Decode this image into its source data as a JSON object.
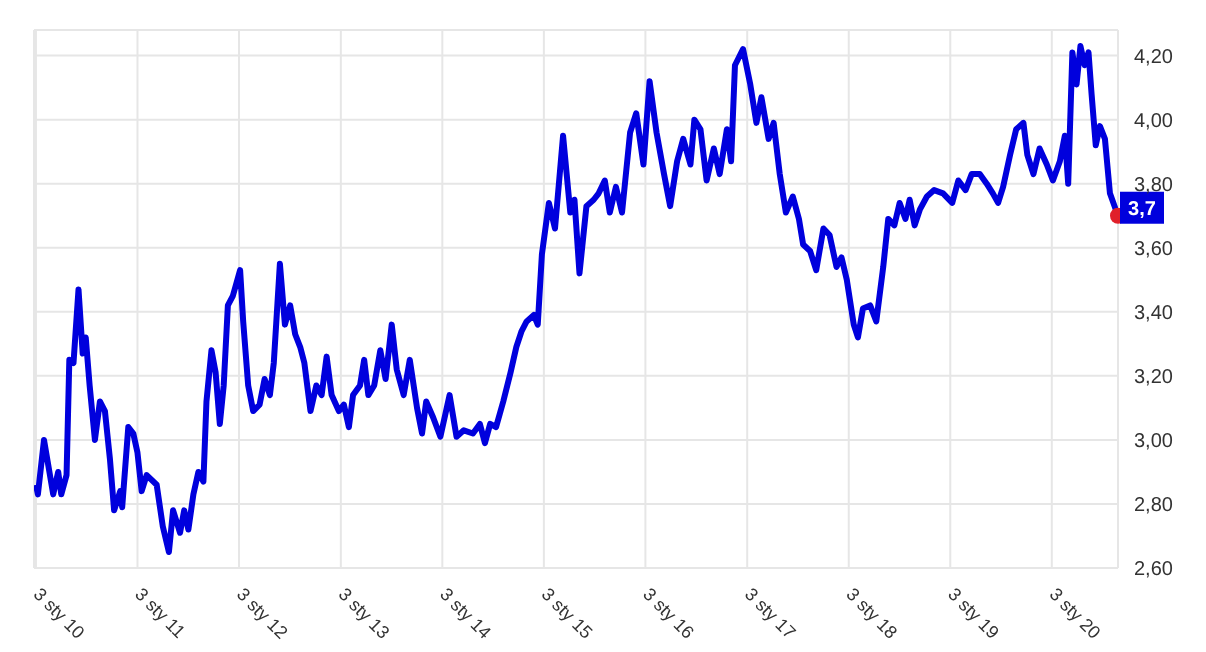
{
  "chart_data": {
    "type": "line",
    "x": [
      "2010-01-03",
      "2010-01-10",
      "2010-02-01",
      "2010-03-06",
      "2010-03-24",
      "2010-04-04",
      "2010-04-23",
      "2010-05-03",
      "2010-05-18",
      "2010-06-05",
      "2010-06-20",
      "2010-07-01",
      "2010-07-15",
      "2010-08-03",
      "2010-08-21",
      "2010-09-08",
      "2010-09-26",
      "2010-10-11",
      "2010-11-02",
      "2010-11-09",
      "2010-12-01",
      "2010-12-19",
      "2011-01-03",
      "2011-01-18",
      "2011-02-05",
      "2011-03-13",
      "2011-04-04",
      "2011-04-26",
      "2011-05-11",
      "2011-06-05",
      "2011-06-20",
      "2011-07-05",
      "2011-07-23",
      "2011-08-10",
      "2011-08-28",
      "2011-09-08",
      "2011-09-26",
      "2011-10-11",
      "2011-10-26",
      "2011-11-09",
      "2011-11-24",
      "2011-12-12",
      "2012-01-07",
      "2012-01-18",
      "2012-02-05",
      "2012-02-23",
      "2012-03-17",
      "2012-04-04",
      "2012-04-23",
      "2012-05-07",
      "2012-05-29",
      "2012-06-16",
      "2012-07-05",
      "2012-07-23",
      "2012-08-10",
      "2012-08-25",
      "2012-09-16",
      "2012-10-07",
      "2012-10-26",
      "2012-11-13",
      "2012-12-01",
      "2012-12-27",
      "2013-01-14",
      "2013-02-01",
      "2013-02-16",
      "2013-03-13",
      "2013-03-28",
      "2013-04-12",
      "2013-05-03",
      "2013-05-25",
      "2013-06-13",
      "2013-07-05",
      "2013-07-23",
      "2013-08-17",
      "2013-09-08",
      "2013-10-04",
      "2013-10-22",
      "2013-11-06",
      "2013-12-01",
      "2013-12-27",
      "2014-01-29",
      "2014-02-23",
      "2014-03-21",
      "2014-04-23",
      "2014-05-18",
      "2014-06-05",
      "2014-06-24",
      "2014-07-15",
      "2014-08-10",
      "2014-09-05",
      "2014-09-26",
      "2014-10-15",
      "2014-11-02",
      "2014-11-28",
      "2014-12-12",
      "2014-12-27",
      "2015-01-21",
      "2015-02-12",
      "2015-03-13",
      "2015-04-08",
      "2015-04-23",
      "2015-05-11",
      "2015-06-05",
      "2015-07-01",
      "2015-07-19",
      "2015-08-10",
      "2015-08-28",
      "2015-09-19",
      "2015-10-11",
      "2015-11-09",
      "2015-12-01",
      "2015-12-27",
      "2016-01-18",
      "2016-02-12",
      "2016-03-10",
      "2016-04-01",
      "2016-04-26",
      "2016-05-18",
      "2016-06-13",
      "2016-06-27",
      "2016-07-19",
      "2016-08-10",
      "2016-09-05",
      "2016-09-26",
      "2016-10-22",
      "2016-11-06",
      "2016-11-20",
      "2016-12-19",
      "2017-01-14",
      "2017-02-05",
      "2017-02-23",
      "2017-03-21",
      "2017-04-08",
      "2017-04-30",
      "2017-05-22",
      "2017-06-16",
      "2017-07-08",
      "2017-07-23",
      "2017-08-17",
      "2017-09-08",
      "2017-10-04",
      "2017-10-26",
      "2017-11-20",
      "2017-12-08",
      "2017-12-27",
      "2018-01-21",
      "2018-02-05",
      "2018-02-23",
      "2018-03-21",
      "2018-04-12",
      "2018-05-07",
      "2018-05-25",
      "2018-06-16",
      "2018-07-05",
      "2018-07-26",
      "2018-08-10",
      "2018-08-28",
      "2018-09-16",
      "2018-10-11",
      "2018-11-06",
      "2018-12-08",
      "2019-01-10",
      "2019-02-01",
      "2019-02-27",
      "2019-03-21",
      "2019-04-19",
      "2019-05-14",
      "2019-06-05",
      "2019-06-24",
      "2019-07-12",
      "2019-08-06",
      "2019-08-28",
      "2019-09-23",
      "2019-10-07",
      "2019-10-29",
      "2019-11-20",
      "2019-12-16",
      "2020-01-07",
      "2020-02-01",
      "2020-02-19",
      "2020-03-02",
      "2020-03-17",
      "2020-04-01",
      "2020-04-15",
      "2020-04-30",
      "2020-05-14",
      "2020-05-25",
      "2020-06-09",
      "2020-06-24",
      "2020-07-12",
      "2020-07-30",
      "2020-08-28"
    ],
    "series": [
      {
        "color": "#0000dd",
        "values": [
          2.86,
          2.83,
          3.0,
          2.83,
          2.9,
          2.83,
          2.89,
          3.25,
          3.24,
          3.47,
          3.27,
          3.32,
          3.17,
          3.0,
          3.12,
          3.09,
          2.94,
          2.78,
          2.84,
          2.79,
          3.04,
          3.02,
          2.96,
          2.84,
          2.89,
          2.86,
          2.73,
          2.65,
          2.78,
          2.71,
          2.78,
          2.72,
          2.83,
          2.9,
          2.87,
          3.12,
          3.28,
          3.21,
          3.05,
          3.17,
          3.42,
          3.45,
          3.53,
          3.37,
          3.17,
          3.09,
          3.11,
          3.19,
          3.14,
          3.24,
          3.55,
          3.36,
          3.42,
          3.33,
          3.29,
          3.24,
          3.09,
          3.17,
          3.14,
          3.26,
          3.14,
          3.09,
          3.11,
          3.04,
          3.14,
          3.17,
          3.25,
          3.14,
          3.17,
          3.28,
          3.19,
          3.36,
          3.22,
          3.14,
          3.25,
          3.1,
          3.02,
          3.12,
          3.07,
          3.01,
          3.14,
          3.01,
          3.03,
          3.02,
          3.05,
          2.99,
          3.05,
          3.04,
          3.12,
          3.21,
          3.29,
          3.34,
          3.37,
          3.39,
          3.36,
          3.58,
          3.74,
          3.66,
          3.95,
          3.71,
          3.75,
          3.52,
          3.73,
          3.75,
          3.77,
          3.81,
          3.71,
          3.79,
          3.71,
          3.96,
          4.02,
          3.86,
          4.12,
          3.96,
          3.83,
          3.73,
          3.87,
          3.94,
          3.86,
          4.0,
          3.97,
          3.81,
          3.91,
          3.83,
          3.97,
          3.87,
          4.17,
          4.22,
          4.11,
          3.99,
          4.07,
          3.94,
          3.99,
          3.83,
          3.71,
          3.76,
          3.69,
          3.61,
          3.59,
          3.53,
          3.66,
          3.64,
          3.54,
          3.57,
          3.5,
          3.36,
          3.32,
          3.41,
          3.42,
          3.37,
          3.54,
          3.69,
          3.67,
          3.74,
          3.69,
          3.75,
          3.67,
          3.72,
          3.76,
          3.78,
          3.77,
          3.74,
          3.81,
          3.78,
          3.83,
          3.83,
          3.8,
          3.77,
          3.74,
          3.79,
          3.89,
          3.97,
          3.99,
          3.89,
          3.83,
          3.91,
          3.86,
          3.81,
          3.87,
          3.95,
          3.8,
          4.21,
          4.11,
          4.23,
          4.17,
          4.21,
          4.08,
          3.92,
          3.98,
          3.94,
          3.77,
          3.7
        ]
      }
    ],
    "xlim": [
      "2009-12-27",
      "2020-08-28"
    ],
    "xticks": [
      {
        "value": "2010-01-03",
        "label": "3 sty 10"
      },
      {
        "value": "2011-01-03",
        "label": "3 sty 11"
      },
      {
        "value": "2012-01-03",
        "label": "3 sty 12"
      },
      {
        "value": "2013-01-03",
        "label": "3 sty 13"
      },
      {
        "value": "2014-01-03",
        "label": "3 sty 14"
      },
      {
        "value": "2015-01-03",
        "label": "3 sty 15"
      },
      {
        "value": "2016-01-03",
        "label": "3 sty 16"
      },
      {
        "value": "2017-01-03",
        "label": "3 sty 17"
      },
      {
        "value": "2018-01-03",
        "label": "3 sty 18"
      },
      {
        "value": "2019-01-03",
        "label": "3 sty 19"
      },
      {
        "value": "2020-01-03",
        "label": "3 sty 20"
      }
    ],
    "ylim": [
      2.6,
      4.28
    ],
    "yticks": [
      {
        "value": 2.6,
        "label": "2,60"
      },
      {
        "value": 2.8,
        "label": "2,80"
      },
      {
        "value": 3.0,
        "label": "3,00"
      },
      {
        "value": 3.2,
        "label": "3,20"
      },
      {
        "value": 3.4,
        "label": "3,40"
      },
      {
        "value": 3.6,
        "label": "3,60"
      },
      {
        "value": 3.8,
        "label": "3,80"
      },
      {
        "value": 4.0,
        "label": "4,00"
      },
      {
        "value": 4.2,
        "label": "4,20"
      }
    ],
    "annotations": [
      {
        "text": "3,7",
        "x": "2020-08-28",
        "y": 3.7
      }
    ],
    "grid": true,
    "marker": "none",
    "line_style": "solid"
  }
}
